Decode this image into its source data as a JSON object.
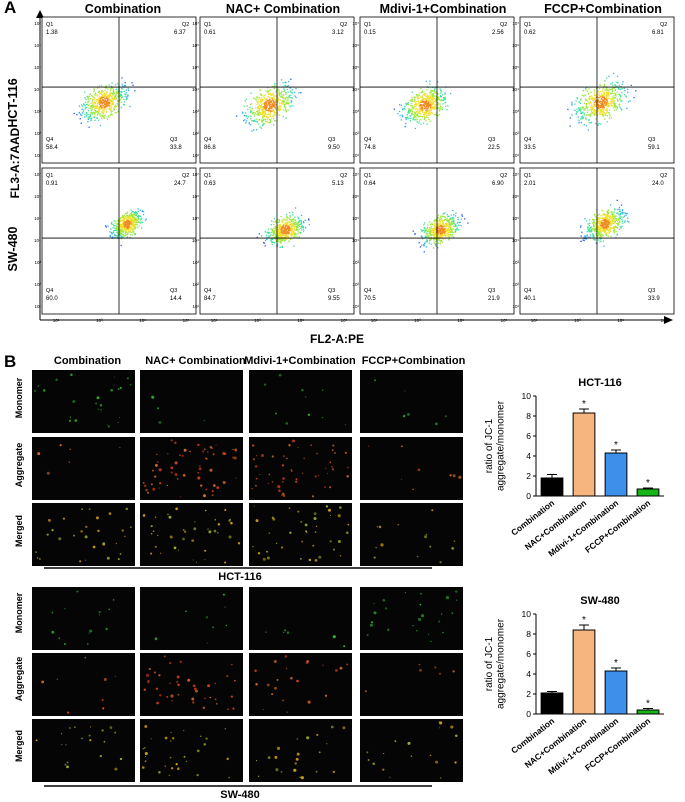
{
  "panel_a": {
    "letter": "A",
    "columns": [
      "Combination",
      "NAC+ Combination",
      "Mdivi-1+Combination",
      "FCCP+Combination"
    ],
    "rows": [
      "HCT-116",
      "SW-480"
    ],
    "y_axis_title": "FL3-A:7AAD",
    "x_axis_title": "FL2-A:PE",
    "quadrant_names": [
      "Q1",
      "Q2",
      "Q3",
      "Q4"
    ],
    "y_ticks": [
      "10⁷",
      "10⁶",
      "10⁵",
      "10⁴",
      "10³",
      "10²",
      "10¹"
    ],
    "x_ticks": [
      "10¹",
      "10³",
      "10⁵",
      "10⁷"
    ],
    "plots": [
      {
        "row": "HCT-116",
        "col": "Combination",
        "q1": "1.38",
        "q2": "6.37",
        "q3": "33.8",
        "q4": "58.4"
      },
      {
        "row": "HCT-116",
        "col": "NAC+ Combination",
        "q1": "0.61",
        "q2": "3.12",
        "q3": "9.50",
        "q4": "86.8"
      },
      {
        "row": "HCT-116",
        "col": "Mdivi-1+Combination",
        "q1": "0.15",
        "q2": "2.56",
        "q3": "22.5",
        "q4": "74.8"
      },
      {
        "row": "HCT-116",
        "col": "FCCP+Combination",
        "q1": "0.62",
        "q2": "6.81",
        "q3": "59.1",
        "q4": "33.5"
      },
      {
        "row": "SW-480",
        "col": "Combination",
        "q1": "0.91",
        "q2": "24.7",
        "q3": "14.4",
        "q4": "60.0"
      },
      {
        "row": "SW-480",
        "col": "NAC+ Combination",
        "q1": "0.63",
        "q2": "5.13",
        "q3": "9.55",
        "q4": "84.7"
      },
      {
        "row": "SW-480",
        "col": "Mdivi-1+Combination",
        "q1": "0.64",
        "q2": "6.90",
        "q3": "21.9",
        "q4": "70.5"
      },
      {
        "row": "SW-480",
        "col": "FCCP+Combination",
        "q1": "2.01",
        "q2": "24.0",
        "q3": "33.9",
        "q4": "40.1"
      }
    ]
  },
  "panel_b": {
    "letter": "B",
    "columns": [
      "Combination",
      "NAC+ Combination",
      "Mdivi-1+Combination",
      "FCCP+Combination"
    ],
    "row_labels": [
      "Monomer",
      "Aggregate",
      "Merged"
    ],
    "cell_lines": [
      "HCT-116",
      "SW-480"
    ]
  },
  "chart_data": [
    {
      "type": "bar",
      "title": "HCT-116",
      "ylabel": "ratio of JC-1\naggregate/monomer",
      "ylim": [
        0,
        10
      ],
      "yticks": [
        0,
        2,
        4,
        6,
        8,
        10
      ],
      "categories": [
        "Combination",
        "NAC+Combination",
        "Mdivi-1+Combination",
        "FCCP+Combination"
      ],
      "values": [
        1.8,
        8.3,
        4.3,
        0.7
      ],
      "errors": [
        0.35,
        0.4,
        0.3,
        0.1
      ],
      "significance": [
        "",
        "*",
        "*",
        "*"
      ],
      "colors": [
        "#000000",
        "#f6b47f",
        "#3d8fea",
        "#17b417"
      ]
    },
    {
      "type": "bar",
      "title": "SW-480",
      "ylabel": "ratio of JC-1\naggregate/monomer",
      "ylim": [
        0,
        10
      ],
      "yticks": [
        0,
        2,
        4,
        6,
        8,
        10
      ],
      "categories": [
        "Combination",
        "NAC+Combination",
        "Mdivi-1+Combination",
        "FCCP+Combination"
      ],
      "values": [
        2.1,
        8.4,
        4.3,
        0.4
      ],
      "errors": [
        0.15,
        0.5,
        0.3,
        0.15
      ],
      "significance": [
        "",
        "*",
        "*",
        "*"
      ],
      "colors": [
        "#000000",
        "#f6b47f",
        "#3d8fea",
        "#17b417"
      ]
    }
  ]
}
